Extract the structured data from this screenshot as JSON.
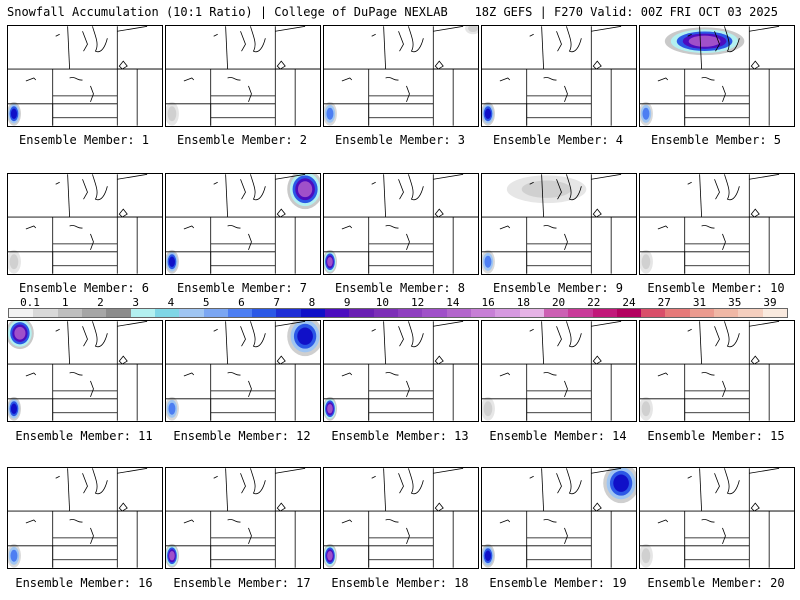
{
  "header": {
    "title_left": "Snowfall Accumulation (10:1 Ratio) | College of DuPage NEXLAB",
    "title_right": "18Z GEFS | F270 Valid: 00Z FRI OCT 03 2025"
  },
  "members": [
    {
      "label": "Ensemble Member: 1",
      "snow": [
        {
          "r": "sw",
          "i": 3
        }
      ]
    },
    {
      "label": "Ensemble Member: 2",
      "snow": [
        {
          "r": "sw",
          "i": 1
        }
      ]
    },
    {
      "label": "Ensemble Member: 3",
      "snow": [
        {
          "r": "sw",
          "i": 2
        },
        {
          "r": "ne-edge",
          "i": 1
        }
      ]
    },
    {
      "label": "Ensemble Member: 4",
      "snow": [
        {
          "r": "sw",
          "i": 3
        }
      ]
    },
    {
      "label": "Ensemble Member: 5",
      "snow": [
        {
          "r": "north",
          "i": 4
        },
        {
          "r": "sw",
          "i": 2
        }
      ]
    },
    {
      "label": "Ensemble Member: 6",
      "snow": [
        {
          "r": "sw",
          "i": 1
        }
      ]
    },
    {
      "label": "Ensemble Member: 7",
      "snow": [
        {
          "r": "ne",
          "i": 4
        },
        {
          "r": "sw",
          "i": 3
        }
      ]
    },
    {
      "label": "Ensemble Member: 8",
      "snow": [
        {
          "r": "sw",
          "i": 4
        }
      ]
    },
    {
      "label": "Ensemble Member: 9",
      "snow": [
        {
          "r": "north",
          "i": 1
        },
        {
          "r": "sw",
          "i": 2
        }
      ]
    },
    {
      "label": "Ensemble Member: 10",
      "snow": [
        {
          "r": "sw",
          "i": 1
        }
      ]
    },
    {
      "label": "Ensemble Member: 11",
      "snow": [
        {
          "r": "nw",
          "i": 4
        },
        {
          "r": "sw",
          "i": 3
        }
      ]
    },
    {
      "label": "Ensemble Member: 12",
      "snow": [
        {
          "r": "ne",
          "i": 3
        },
        {
          "r": "sw",
          "i": 2
        }
      ]
    },
    {
      "label": "Ensemble Member: 13",
      "snow": [
        {
          "r": "sw",
          "i": 4
        }
      ]
    },
    {
      "label": "Ensemble Member: 14",
      "snow": [
        {
          "r": "sw",
          "i": 1
        }
      ]
    },
    {
      "label": "Ensemble Member: 15",
      "snow": [
        {
          "r": "sw",
          "i": 1
        }
      ]
    },
    {
      "label": "Ensemble Member: 16",
      "snow": [
        {
          "r": "sw",
          "i": 2
        }
      ]
    },
    {
      "label": "Ensemble Member: 17",
      "snow": [
        {
          "r": "sw",
          "i": 4
        }
      ]
    },
    {
      "label": "Ensemble Member: 18",
      "snow": [
        {
          "r": "sw",
          "i": 4
        }
      ]
    },
    {
      "label": "Ensemble Member: 19",
      "snow": [
        {
          "r": "ne",
          "i": 3
        },
        {
          "r": "sw",
          "i": 3
        }
      ]
    },
    {
      "label": "Ensemble Member: 20",
      "snow": [
        {
          "r": "sw",
          "i": 1
        }
      ]
    }
  ],
  "colorbar": {
    "labels": [
      "0.1",
      "1",
      "2",
      "3",
      "4",
      "5",
      "6",
      "7",
      "8",
      "9",
      "10",
      "12",
      "14",
      "16",
      "18",
      "20",
      "22",
      "24",
      "27",
      "31",
      "35",
      "39"
    ],
    "colors": [
      "#f2f2f2",
      "#d9d9d9",
      "#bfbfbf",
      "#a6a6a6",
      "#8c8c8c",
      "#b3f0f0",
      "#7fd6e6",
      "#9fc5f2",
      "#7ba6f2",
      "#4d7ef2",
      "#2b58e6",
      "#1f2fd6",
      "#1010c8",
      "#4b0dbf",
      "#6a1fb3",
      "#7d2fb8",
      "#8f3fc0",
      "#a050c9",
      "#b366cc",
      "#c77fd6",
      "#d699e0",
      "#e6b3e6",
      "#cc5fb3",
      "#c93a99",
      "#c2187a",
      "#b3005f",
      "#d94f6a",
      "#e67a7a",
      "#eb9b8f",
      "#f0b8a6",
      "#f5cfbf",
      "#faeadf"
    ]
  }
}
